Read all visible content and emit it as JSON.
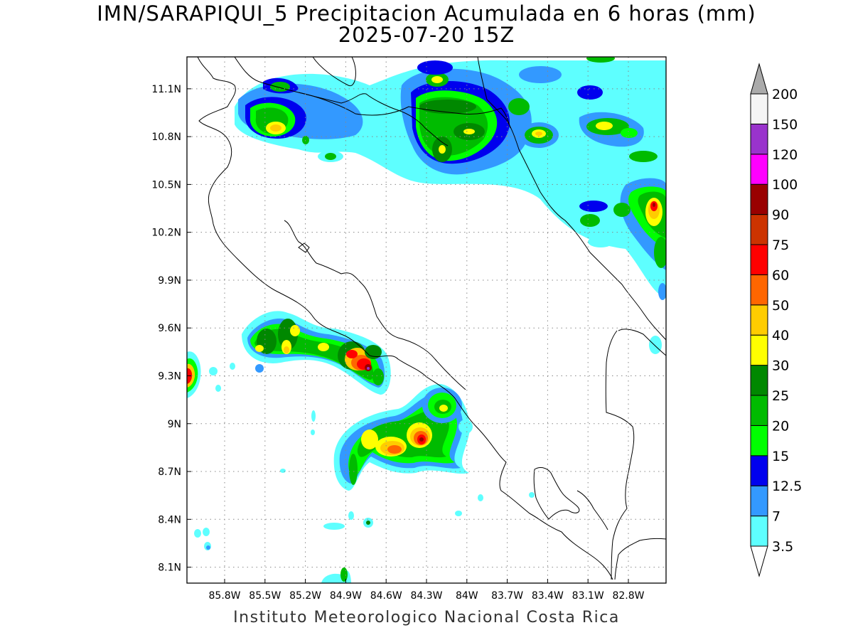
{
  "title": {
    "line1": "IMN/SARAPIQUI_5 Precipitacion Acumulada en 6 horas (mm)",
    "line2": "2025-07-20 15Z"
  },
  "credit": "Instituto Meteorologico Nacional Costa Rica",
  "axes": {
    "lon_ticks": [
      "85.8W",
      "85.5W",
      "85.2W",
      "84.9W",
      "84.6W",
      "84.3W",
      "84W",
      "83.7W",
      "83.4W",
      "83.1W",
      "82.8W"
    ],
    "lat_ticks": [
      "11.1N",
      "10.8N",
      "10.5N",
      "10.2N",
      "9.9N",
      "9.6N",
      "9.3N",
      "9N",
      "8.7N",
      "8.4N",
      "8.1N"
    ],
    "lon_values": [
      -85.8,
      -85.5,
      -85.2,
      -84.9,
      -84.6,
      -84.3,
      -84.0,
      -83.7,
      -83.4,
      -83.1,
      -82.8
    ],
    "lat_values": [
      11.1,
      10.8,
      10.5,
      10.2,
      9.9,
      9.6,
      9.3,
      9.0,
      8.7,
      8.4,
      8.1
    ],
    "lon_range": [
      -86.08,
      -82.52
    ],
    "lat_range": [
      8.0,
      11.3
    ],
    "grid": "dotted"
  },
  "colorbar": {
    "levels": [
      "3.5",
      "7",
      "12.5",
      "15",
      "20",
      "25",
      "30",
      "40",
      "50",
      "60",
      "75",
      "90",
      "100",
      "120",
      "150",
      "200"
    ],
    "colors": [
      "#ffffff",
      "#5effff",
      "#3399ff",
      "#0000ee",
      "#00ff00",
      "#00bb00",
      "#008800",
      "#ffff00",
      "#ffcc00",
      "#ff6600",
      "#ff0000",
      "#cc3300",
      "#990000",
      "#ff00ff",
      "#9933cc",
      "#f5f5f5",
      "#aaaaaa"
    ]
  },
  "precip_cells": [
    {
      "lon": -85.45,
      "lat": 10.93,
      "level": 7
    },
    {
      "lon": -85.38,
      "lat": 10.98,
      "level": 5
    },
    {
      "lon": -85.25,
      "lat": 11.1,
      "level": 3
    },
    {
      "lon": -84.88,
      "lat": 11.18,
      "level": 2
    },
    {
      "lon": -84.3,
      "lat": 11.12,
      "level": 7
    },
    {
      "lon": -84.1,
      "lat": 11.0,
      "level": 6
    },
    {
      "lon": -84.28,
      "lat": 10.78,
      "level": 7
    },
    {
      "lon": -83.95,
      "lat": 10.85,
      "level": 5
    },
    {
      "lon": -83.42,
      "lat": 10.82,
      "level": 7
    },
    {
      "lon": -83.0,
      "lat": 10.86,
      "level": 7
    },
    {
      "lon": -82.65,
      "lat": 10.35,
      "level": 11
    },
    {
      "lon": -83.05,
      "lat": 10.4,
      "level": 5
    },
    {
      "lon": -85.25,
      "lat": 9.6,
      "level": 7
    },
    {
      "lon": -85.35,
      "lat": 9.5,
      "level": 6
    },
    {
      "lon": -84.78,
      "lat": 9.4,
      "level": 9
    },
    {
      "lon": -84.68,
      "lat": 9.33,
      "level": 13
    },
    {
      "lon": -86.05,
      "lat": 9.32,
      "level": 11
    },
    {
      "lon": -84.22,
      "lat": 9.1,
      "level": 8
    },
    {
      "lon": -84.5,
      "lat": 8.84,
      "level": 10
    },
    {
      "lon": -84.3,
      "lat": 8.88,
      "level": 12
    },
    {
      "lon": -84.72,
      "lat": 8.88,
      "level": 6
    },
    {
      "lon": -84.82,
      "lat": 8.05,
      "level": 5
    }
  ]
}
